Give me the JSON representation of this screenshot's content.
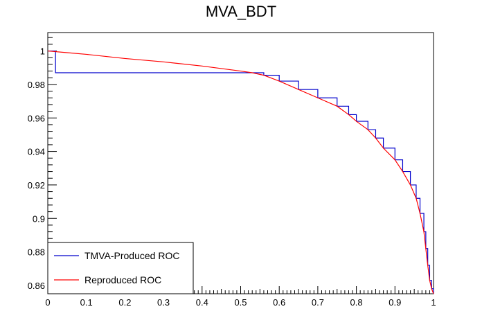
{
  "chart_data": {
    "type": "line",
    "title": "MVA_BDT",
    "xlabel": "",
    "ylabel": "",
    "xlim": [
      0,
      1
    ],
    "ylim": [
      0.855,
      1.011
    ],
    "x_ticks": [
      "0",
      "0.1",
      "0.2",
      "0.3",
      "0.4",
      "0.5",
      "0.6",
      "0.7",
      "0.8",
      "0.9",
      "1"
    ],
    "y_ticks": [
      "0.86",
      "0.88",
      "0.9",
      "0.92",
      "0.94",
      "0.96",
      "0.98",
      "1"
    ],
    "grid": false,
    "legend_position": "bottom-left",
    "series": [
      {
        "name": "TMVA-Produced ROC",
        "color": "#0000cc",
        "style": "step",
        "x": [
          0,
          0.02,
          0.02,
          0.53,
          0.56,
          0.6,
          0.65,
          0.7,
          0.75,
          0.78,
          0.8,
          0.83,
          0.85,
          0.87,
          0.9,
          0.92,
          0.94,
          0.955,
          0.965,
          0.975,
          0.98,
          0.985,
          0.99,
          0.995,
          1.0
        ],
        "y": [
          1.0,
          1.0,
          0.987,
          0.987,
          0.9855,
          0.982,
          0.977,
          0.972,
          0.967,
          0.962,
          0.958,
          0.953,
          0.948,
          0.942,
          0.935,
          0.928,
          0.92,
          0.912,
          0.903,
          0.892,
          0.882,
          0.872,
          0.863,
          0.858,
          0.855
        ]
      },
      {
        "name": "Reproduced ROC",
        "color": "#ff0000",
        "style": "line",
        "x": [
          0,
          0.05,
          0.1,
          0.2,
          0.3,
          0.4,
          0.5,
          0.53,
          0.56,
          0.6,
          0.65,
          0.7,
          0.75,
          0.78,
          0.8,
          0.83,
          0.85,
          0.87,
          0.9,
          0.92,
          0.94,
          0.955,
          0.965,
          0.975,
          0.98,
          0.985,
          0.99,
          0.995,
          1.0
        ],
        "y": [
          1.0,
          0.999,
          0.998,
          0.9955,
          0.9935,
          0.991,
          0.988,
          0.987,
          0.9855,
          0.982,
          0.977,
          0.972,
          0.967,
          0.962,
          0.958,
          0.953,
          0.948,
          0.942,
          0.935,
          0.928,
          0.92,
          0.912,
          0.903,
          0.892,
          0.882,
          0.872,
          0.863,
          0.858,
          0.855
        ]
      }
    ]
  }
}
